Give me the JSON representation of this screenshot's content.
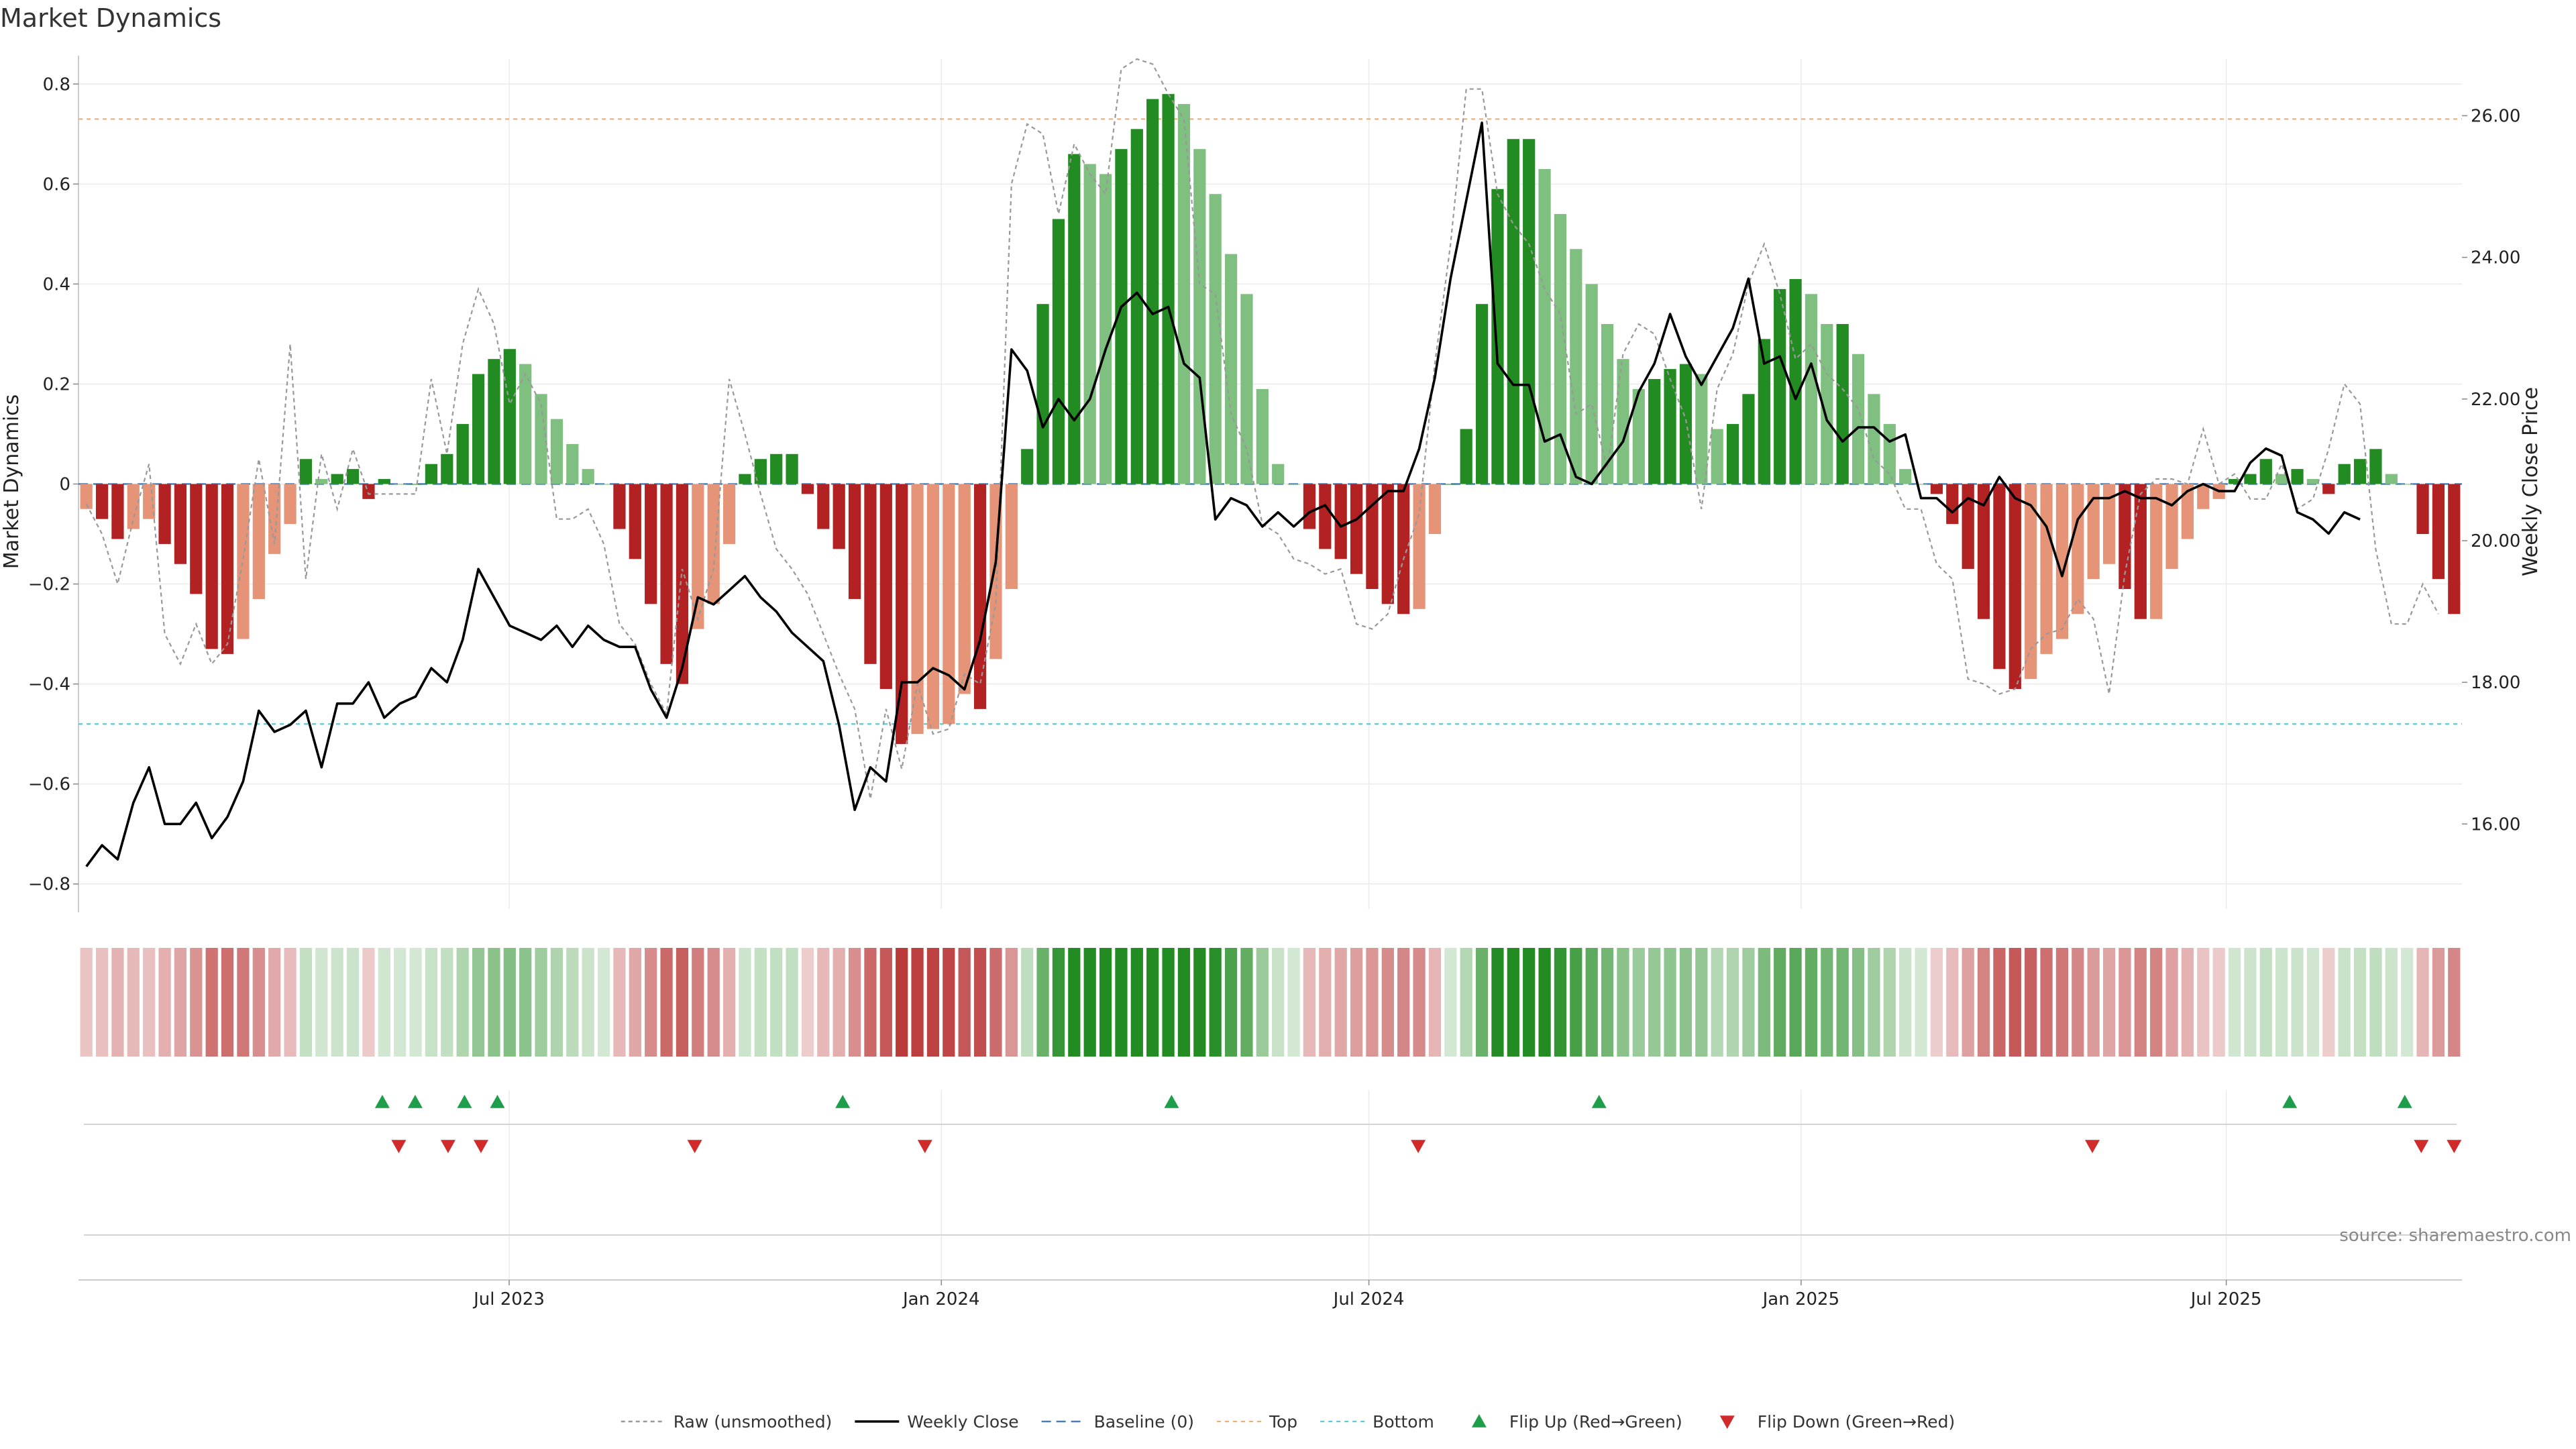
{
  "chart_data": {
    "type": "bar",
    "title": "Market Dynamics",
    "source": "source: sharemaestro.com",
    "y_left": {
      "label": "Market Dynamics",
      "ylim": [
        -0.85,
        0.85
      ],
      "ticks": [
        0.8,
        0.6,
        0.4,
        0.2,
        0,
        -0.2,
        -0.4,
        -0.6,
        -0.8
      ],
      "tick_labels": [
        "0.8",
        "0.6",
        "0.4",
        "0.2",
        "0",
        "−0.2",
        "−0.4",
        "−0.6",
        "−0.8"
      ]
    },
    "y_right": {
      "label": "Weekly Close Price",
      "ylim": [
        14.8,
        26.8
      ],
      "ticks": [
        26,
        24,
        22,
        20,
        18,
        16
      ],
      "tick_labels": [
        "26.00",
        "24.00",
        "22.00",
        "20.00",
        "18.00",
        "16.00"
      ]
    },
    "x_axis": {
      "start": "2023-01-02",
      "end": "2025-10-06",
      "tick_dates": [
        "2023-07-01",
        "2024-01-01",
        "2024-07-01",
        "2025-01-01",
        "2025-07-01"
      ],
      "tick_labels": [
        "Jul 2023",
        "Jan 2024",
        "Jul 2024",
        "Jan 2025",
        "Jul 2025"
      ]
    },
    "grid": true,
    "reference_lines": {
      "baseline": 0,
      "top": 0.73,
      "bottom": -0.48
    },
    "colors": {
      "up_strong": "#228B22",
      "up_weak": "#7FBF7F",
      "down_strong": "#B22222",
      "down_weak": "#E59478",
      "raw": "#999999",
      "close": "#000000",
      "baseline": "#4A7FB0",
      "top": "#E8B07A",
      "bottom": "#5BC8D8",
      "flip_up": "#1E9E4A",
      "flip_down": "#D02A2A"
    },
    "series": [
      {
        "name": "Market Dynamics",
        "values": [
          -0.05,
          -0.07,
          -0.11,
          -0.09,
          -0.07,
          -0.12,
          -0.16,
          -0.22,
          -0.33,
          -0.34,
          -0.31,
          -0.23,
          -0.14,
          -0.08,
          0.05,
          0.01,
          0.02,
          0.03,
          -0.03,
          0.01,
          0.0,
          0.0,
          0.04,
          0.06,
          0.12,
          0.22,
          0.25,
          0.27,
          0.24,
          0.18,
          0.13,
          0.08,
          0.03,
          0.0,
          -0.09,
          -0.15,
          -0.24,
          -0.36,
          -0.4,
          -0.29,
          -0.24,
          -0.12,
          0.02,
          0.05,
          0.06,
          0.06,
          -0.02,
          -0.09,
          -0.13,
          -0.23,
          -0.36,
          -0.41,
          -0.52,
          -0.5,
          -0.49,
          -0.48,
          -0.42,
          -0.45,
          -0.35,
          -0.21,
          0.07,
          0.36,
          0.53,
          0.66,
          0.64,
          0.62,
          0.67,
          0.71,
          0.77,
          0.78,
          0.76,
          0.67,
          0.58,
          0.46,
          0.38,
          0.19,
          0.04,
          0.0,
          -0.09,
          -0.13,
          -0.15,
          -0.18,
          -0.21,
          -0.24,
          -0.26,
          -0.25,
          -0.1,
          0.0,
          0.11,
          0.36,
          0.59,
          0.69,
          0.69,
          0.63,
          0.54,
          0.47,
          0.4,
          0.32,
          0.25,
          0.19,
          0.21,
          0.23,
          0.24,
          0.22,
          0.11,
          0.12,
          0.18,
          0.29,
          0.39,
          0.41,
          0.38,
          0.32,
          0.32,
          0.26,
          0.18,
          0.12,
          0.03,
          0.0,
          -0.02,
          -0.08,
          -0.17,
          -0.27,
          -0.37,
          -0.41,
          -0.39,
          -0.34,
          -0.31,
          -0.26,
          -0.19,
          -0.16,
          -0.21,
          -0.27,
          -0.27,
          -0.17,
          -0.11,
          -0.05,
          -0.03,
          0.01,
          0.02,
          0.05,
          0.02,
          0.03,
          0.01,
          -0.02,
          0.04,
          0.05,
          0.07,
          0.02,
          0.0,
          -0.1,
          -0.19,
          -0.26
        ]
      },
      {
        "name": "Raw (unsmoothed)",
        "values": [
          -0.04,
          -0.1,
          -0.2,
          -0.07,
          0.04,
          -0.3,
          -0.36,
          -0.28,
          -0.36,
          -0.32,
          -0.15,
          0.05,
          -0.12,
          0.28,
          -0.19,
          0.06,
          -0.05,
          0.07,
          -0.02,
          -0.02,
          -0.02,
          -0.02,
          0.21,
          0.06,
          0.28,
          0.39,
          0.32,
          0.16,
          0.22,
          0.16,
          -0.07,
          -0.07,
          -0.05,
          -0.12,
          -0.28,
          -0.32,
          -0.4,
          -0.46,
          -0.17,
          -0.27,
          -0.17,
          0.21,
          0.1,
          -0.02,
          -0.13,
          -0.17,
          -0.22,
          -0.3,
          -0.38,
          -0.45,
          -0.63,
          -0.45,
          -0.57,
          -0.4,
          -0.5,
          -0.49,
          -0.38,
          -0.4,
          -0.24,
          0.6,
          0.72,
          0.7,
          0.54,
          0.68,
          0.62,
          0.58,
          0.83,
          0.85,
          0.84,
          0.78,
          0.73,
          0.4,
          0.38,
          0.14,
          0.07,
          -0.08,
          -0.1,
          -0.15,
          -0.16,
          -0.18,
          -0.17,
          -0.28,
          -0.29,
          -0.26,
          -0.15,
          -0.06,
          0.24,
          0.48,
          0.79,
          0.79,
          0.58,
          0.52,
          0.48,
          0.39,
          0.34,
          0.14,
          0.16,
          0.03,
          0.26,
          0.32,
          0.3,
          0.21,
          0.13,
          -0.05,
          0.19,
          0.26,
          0.4,
          0.48,
          0.38,
          0.25,
          0.28,
          0.22,
          0.19,
          0.15,
          0.05,
          0.02,
          -0.05,
          -0.05,
          -0.16,
          -0.19,
          -0.39,
          -0.4,
          -0.42,
          -0.41,
          -0.33,
          -0.3,
          -0.29,
          -0.23,
          -0.27,
          -0.42,
          -0.18,
          -0.02,
          0.01,
          0.01,
          0.0,
          0.11,
          0.0,
          0.02,
          -0.03,
          -0.03,
          0.04,
          -0.05,
          -0.03,
          0.07,
          0.2,
          0.16,
          -0.13,
          -0.28,
          -0.28,
          -0.2,
          -0.26
        ]
      },
      {
        "name": "Weekly Close",
        "values": [
          15.4,
          15.7,
          15.5,
          16.3,
          16.8,
          16.0,
          16.0,
          16.3,
          15.8,
          16.1,
          16.6,
          17.6,
          17.3,
          17.4,
          17.6,
          16.8,
          17.7,
          17.7,
          18.0,
          17.5,
          17.7,
          17.8,
          18.2,
          18.0,
          18.6,
          19.6,
          19.2,
          18.8,
          18.7,
          18.6,
          18.8,
          18.5,
          18.8,
          18.6,
          18.5,
          18.5,
          17.9,
          17.5,
          18.2,
          19.2,
          19.1,
          19.3,
          19.5,
          19.2,
          19.0,
          18.7,
          18.5,
          18.3,
          17.4,
          16.2,
          16.8,
          16.6,
          18.0,
          18.0,
          18.2,
          18.1,
          17.9,
          18.6,
          19.7,
          22.7,
          22.4,
          21.6,
          22.0,
          21.7,
          22.0,
          22.7,
          23.3,
          23.5,
          23.2,
          23.3,
          22.5,
          22.3,
          20.3,
          20.6,
          20.5,
          20.2,
          20.4,
          20.2,
          20.4,
          20.5,
          20.2,
          20.3,
          20.5,
          20.7,
          20.7,
          21.3,
          22.3,
          23.7,
          24.8,
          25.9,
          22.5,
          22.2,
          22.2,
          21.4,
          21.5,
          20.9,
          20.8,
          21.1,
          21.4,
          22.1,
          22.5,
          23.2,
          22.6,
          22.2,
          22.6,
          23.0,
          23.7,
          22.5,
          22.6,
          22.0,
          22.5,
          21.7,
          21.4,
          21.6,
          21.6,
          21.4,
          21.5,
          20.6,
          20.6,
          20.4,
          20.6,
          20.5,
          20.9,
          20.6,
          20.5,
          20.2,
          19.5,
          20.3,
          20.6,
          20.6,
          20.7,
          20.6,
          20.6,
          20.5,
          20.7,
          20.8,
          20.7,
          20.7,
          21.1,
          21.3,
          21.2,
          20.4,
          20.3,
          20.1,
          20.4,
          20.3
        ]
      }
    ],
    "flip_up_dates": [
      "2023-05-08",
      "2023-05-22",
      "2023-06-12",
      "2023-06-26",
      "2023-11-20",
      "2024-04-08",
      "2024-10-07",
      "2025-07-28",
      "2025-09-15"
    ],
    "flip_down_dates": [
      "2023-05-15",
      "2023-06-05",
      "2023-06-19",
      "2023-09-18",
      "2023-12-25",
      "2024-07-22",
      "2025-05-05",
      "2025-09-22",
      "2025-10-06"
    ],
    "legend": {
      "placement": "bottom",
      "items": [
        {
          "label": "Raw (unsmoothed)",
          "kind": "raw"
        },
        {
          "label": "Weekly Close",
          "kind": "close"
        },
        {
          "label": "Baseline (0)",
          "kind": "baseline"
        },
        {
          "label": "Top",
          "kind": "top"
        },
        {
          "label": "Bottom",
          "kind": "bottom"
        },
        {
          "label": "Flip Up (Red→Green)",
          "kind": "flip_up"
        },
        {
          "label": "Flip Down (Green→Red)",
          "kind": "flip_down"
        }
      ]
    }
  }
}
